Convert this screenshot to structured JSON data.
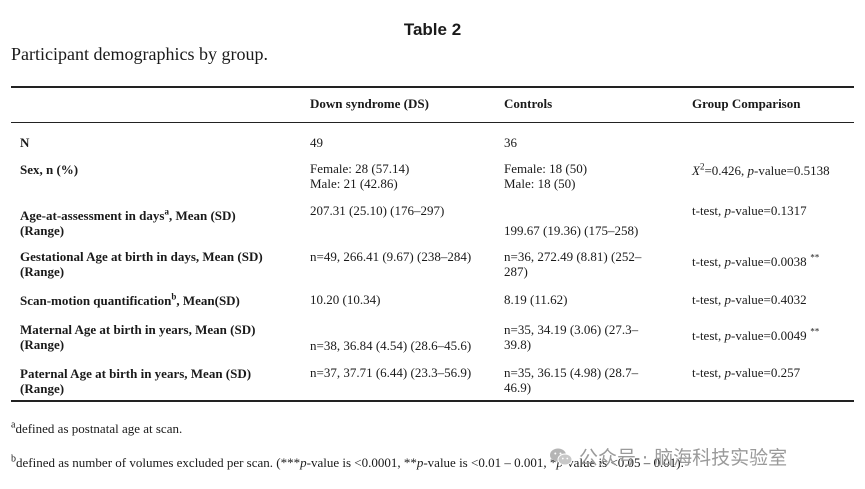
{
  "table_title": "Table 2",
  "caption": "Participant demographics by group.",
  "headers": {
    "group1": "Down syndrome (DS)",
    "group2": "Controls",
    "comparison": "Group Comparison"
  },
  "rows": {
    "n": {
      "label": "N",
      "ds": "49",
      "ctrl": "36"
    },
    "sex": {
      "label": "Sex, n (%)",
      "ds_female": "Female: 28 (57.14)",
      "ds_male": "Male: 21 (42.86)",
      "ctrl_female": "Female: 18 (50)",
      "ctrl_male": "Male: 18 (50)",
      "comp_stat": "X",
      "comp_sup": "2",
      "comp_value": "=0.426, ",
      "comp_p": "p",
      "comp_rest": "-value=0.5138"
    },
    "age": {
      "label_a": "Age-at-assessment in days",
      "label_sup": "a",
      "label_b": ", Mean (SD)",
      "label_c": "(Range)",
      "ds": "207.31 (25.10) (176–297)",
      "ctrl": "199.67 (19.36) (175–258)",
      "comp_a": "t-test, ",
      "comp_p": "p",
      "comp_b": "-value=0.1317"
    },
    "gest": {
      "label_a": "Gestational Age at birth in days, Mean (SD)",
      "label_b": "(Range)",
      "ds": "n=49, 266.41 (9.67) (238–284)",
      "ctrl_a": "n=36, 272.49 (8.81) (252–",
      "ctrl_b": "287)",
      "comp_a": "t-test, ",
      "comp_p": "p",
      "comp_b": "-value=0.0038 ",
      "comp_stars": "**"
    },
    "scan": {
      "label_a": "Scan-motion quantification",
      "label_sup": "b",
      "label_b": ", Mean(SD)",
      "ds": "10.20 (10.34)",
      "ctrl": "8.19 (11.62)",
      "comp_a": "t-test, ",
      "comp_p": "p",
      "comp_b": "-value=0.4032"
    },
    "maternal": {
      "label_a": "Maternal Age at birth in years, Mean (SD)",
      "label_b": "(Range)",
      "ds": "n=38, 36.84 (4.54) (28.6–45.6)",
      "ctrl_a": "n=35, 34.19 (3.06) (27.3–",
      "ctrl_b": "39.8)",
      "comp_a": "t-test, ",
      "comp_p": "p",
      "comp_b": "-value=0.0049 ",
      "comp_stars": "**"
    },
    "paternal": {
      "label_a": "Paternal Age at birth in years, Mean (SD)",
      "label_b": "(Range)",
      "ds": "n=37, 37.71 (6.44) (23.3–56.9)",
      "ctrl_a": "n=35, 36.15 (4.98) (28.7–",
      "ctrl_b": "46.9)",
      "comp_a": "t-test, ",
      "comp_p": "p",
      "comp_b": "-value=0.257"
    }
  },
  "footnotes": {
    "a_mark": "a",
    "a_text": "defined as postnatal age at scan.",
    "b_mark": "b",
    "b_text_1": "defined as number of volumes excluded per scan. (***",
    "b_p1": "p",
    "b_text_2": "-value is <0.0001, **",
    "b_p2": "p",
    "b_text_3": "-value is <0.01 – 0.001, *",
    "b_p3": "p",
    "b_text_4": "-value is <0.05 – 0.01)."
  },
  "watermark": {
    "text": "公众号 · 脑海科技实验室",
    "icon": "wechat-icon"
  }
}
